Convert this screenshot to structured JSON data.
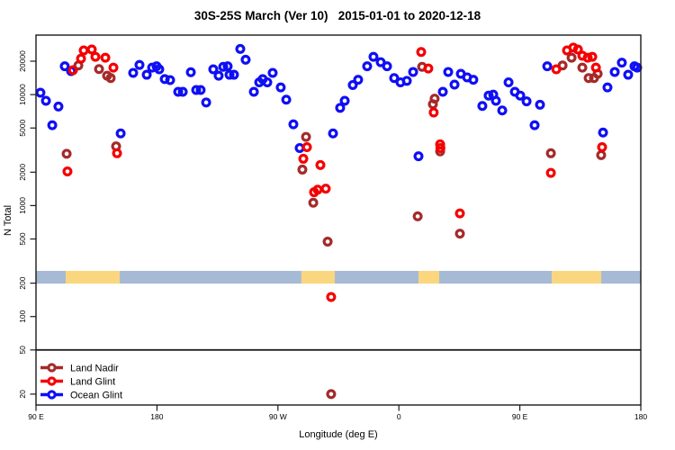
{
  "title": "30S-25S March (Ver 10)   2015-01-01 to 2020-12-18",
  "legend": {
    "items": [
      {
        "label": "Land Nadir",
        "color": "#A52A2A"
      },
      {
        "label": "Land Glint",
        "color": "#F50000"
      },
      {
        "label": "Ocean Glint",
        "color": "#0F0FF5"
      }
    ]
  },
  "chart_data": {
    "type": "scatter",
    "title": "30S-25S March (Ver 10)   2015-01-01 to 2020-12-18",
    "xlabel": "Longitude (deg E)",
    "ylabel": "N Total",
    "y_scale": "log",
    "ylim": [
      14,
      34000
    ],
    "x_axis_span_deg": 450,
    "x_ticks": [
      {
        "offset_deg": 0,
        "label": "90 E"
      },
      {
        "offset_deg": 90,
        "label": "180"
      },
      {
        "offset_deg": 180,
        "label": "90 W"
      },
      {
        "offset_deg": 270,
        "label": "0"
      },
      {
        "offset_deg": 360,
        "label": "90 E"
      },
      {
        "offset_deg": 450,
        "label": "180"
      }
    ],
    "y_ticks": [
      20,
      50,
      100,
      200,
      500,
      1000,
      2000,
      5000,
      10000,
      20000
    ],
    "reference_line_n": 50,
    "surface_band": {
      "n_range": [
        198,
        258
      ],
      "colors": {
        "ocean": "#A6BAD6",
        "land": "#FAD67F"
      },
      "segments": [
        {
          "type": "ocean",
          "from_deg": 0,
          "to_deg": 22.1
        },
        {
          "type": "land",
          "from_deg": 22.1,
          "to_deg": 62.3
        },
        {
          "type": "ocean",
          "from_deg": 62.3,
          "to_deg": 197.5
        },
        {
          "type": "land",
          "from_deg": 197.5,
          "to_deg": 222.3
        },
        {
          "type": "ocean",
          "from_deg": 222.3,
          "to_deg": 284.6
        },
        {
          "type": "land",
          "from_deg": 284.6,
          "to_deg": 300.0
        },
        {
          "type": "ocean",
          "from_deg": 300.0,
          "to_deg": 383.7
        },
        {
          "type": "land",
          "from_deg": 383.7,
          "to_deg": 420.5
        },
        {
          "type": "ocean",
          "from_deg": 420.5,
          "to_deg": 450.0
        }
      ]
    },
    "series": [
      {
        "name": "Land Nadir",
        "color": "#A52A2A",
        "points": [
          [
            31.5,
            18300
          ],
          [
            46.9,
            17000
          ],
          [
            52.9,
            14800
          ],
          [
            55.6,
            14100
          ],
          [
            22.8,
            2930
          ],
          [
            59.6,
            3420
          ],
          [
            200.9,
            4160
          ],
          [
            198.2,
            2110
          ],
          [
            206.3,
            1060
          ],
          [
            217,
            473
          ],
          [
            219.6,
            20
          ],
          [
            284,
            800
          ],
          [
            287.3,
            17800
          ],
          [
            296.6,
            9200
          ],
          [
            295.3,
            8200
          ],
          [
            300.7,
            3080
          ],
          [
            315.4,
            558
          ],
          [
            383.1,
            2960
          ],
          [
            391.8,
            18300
          ],
          [
            398.5,
            21500
          ],
          [
            406.5,
            17500
          ],
          [
            411.2,
            14100
          ],
          [
            415.2,
            14100
          ],
          [
            417.9,
            15400
          ],
          [
            420.5,
            2850
          ]
        ]
      },
      {
        "name": "Land Glint",
        "color": "#F50000",
        "points": [
          [
            35.5,
            25000
          ],
          [
            41.5,
            25500
          ],
          [
            33.5,
            21100
          ],
          [
            44.2,
            21900
          ],
          [
            51.6,
            21500
          ],
          [
            57.6,
            17500
          ],
          [
            27.5,
            16600
          ],
          [
            23.4,
            2030
          ],
          [
            60.3,
            2960
          ],
          [
            201.6,
            3360
          ],
          [
            198.9,
            2640
          ],
          [
            211.6,
            2320
          ],
          [
            206.9,
            1320
          ],
          [
            209.6,
            1390
          ],
          [
            215.6,
            1420
          ],
          [
            219.6,
            150
          ],
          [
            286.6,
            24200
          ],
          [
            291.9,
            17200
          ],
          [
            295.9,
            6900
          ],
          [
            300.7,
            3560
          ],
          [
            300.9,
            3300
          ],
          [
            315.4,
            850
          ],
          [
            383.1,
            1970
          ],
          [
            387.1,
            16900
          ],
          [
            395.1,
            25000
          ],
          [
            399.8,
            26500
          ],
          [
            403.2,
            25500
          ],
          [
            406.5,
            22400
          ],
          [
            410.5,
            21500
          ],
          [
            413.9,
            21900
          ],
          [
            416.6,
            17500
          ],
          [
            421.2,
            3360
          ]
        ]
      },
      {
        "name": "Ocean Glint",
        "color": "#0F0FF5",
        "points": [
          [
            21.4,
            18000
          ],
          [
            26.1,
            16300
          ],
          [
            3.3,
            10400
          ],
          [
            7.4,
            8800
          ],
          [
            16.7,
            7800
          ],
          [
            12.1,
            5300
          ],
          [
            63,
            4470
          ],
          [
            72.3,
            15700
          ],
          [
            77,
            18500
          ],
          [
            82.4,
            15100
          ],
          [
            86.4,
            17500
          ],
          [
            89.7,
            18000
          ],
          [
            91.7,
            16900
          ],
          [
            95.8,
            13800
          ],
          [
            99.8,
            13500
          ],
          [
            105.8,
            10600
          ],
          [
            109.2,
            10600
          ],
          [
            115.2,
            15900
          ],
          [
            119.2,
            11000
          ],
          [
            122.5,
            11000
          ],
          [
            126.6,
            8500
          ],
          [
            131.9,
            16900
          ],
          [
            135.9,
            14800
          ],
          [
            139.3,
            17800
          ],
          [
            142.6,
            18000
          ],
          [
            144,
            15100
          ],
          [
            147.3,
            15100
          ],
          [
            152,
            25800
          ],
          [
            156,
            20600
          ],
          [
            162.1,
            10600
          ],
          [
            166.1,
            12900
          ],
          [
            168.7,
            13800
          ],
          [
            172.1,
            12900
          ],
          [
            176.1,
            15700
          ],
          [
            182.1,
            11600
          ],
          [
            186.2,
            9000
          ],
          [
            191.5,
            5400
          ],
          [
            196.2,
            3300
          ],
          [
            221,
            4470
          ],
          [
            226.3,
            7600
          ],
          [
            229.7,
            8800
          ],
          [
            235.7,
            12200
          ],
          [
            239.7,
            13600
          ],
          [
            246.4,
            18000
          ],
          [
            251.1,
            21900
          ],
          [
            256.5,
            19600
          ],
          [
            261.2,
            18000
          ],
          [
            266.5,
            14100
          ],
          [
            271.2,
            12900
          ],
          [
            275.9,
            13300
          ],
          [
            280.6,
            16000
          ],
          [
            284.6,
            2780
          ],
          [
            302.7,
            10600
          ],
          [
            306.7,
            16000
          ],
          [
            311.4,
            12300
          ],
          [
            316.1,
            15400
          ],
          [
            320.8,
            14300
          ],
          [
            325.4,
            13600
          ],
          [
            332.1,
            7900
          ],
          [
            336.8,
            9800
          ],
          [
            340.2,
            10000
          ],
          [
            342.2,
            8800
          ],
          [
            346.9,
            7200
          ],
          [
            351.6,
            12900
          ],
          [
            356.3,
            10600
          ],
          [
            360.3,
            9800
          ],
          [
            365,
            8700
          ],
          [
            371,
            5300
          ],
          [
            375,
            8100
          ],
          [
            380.4,
            18000
          ],
          [
            421.9,
            4550
          ],
          [
            425.2,
            11600
          ],
          [
            430.6,
            16000
          ],
          [
            435.9,
            19400
          ],
          [
            440.6,
            15100
          ],
          [
            445.3,
            18000
          ],
          [
            447.3,
            17500
          ]
        ]
      }
    ]
  }
}
